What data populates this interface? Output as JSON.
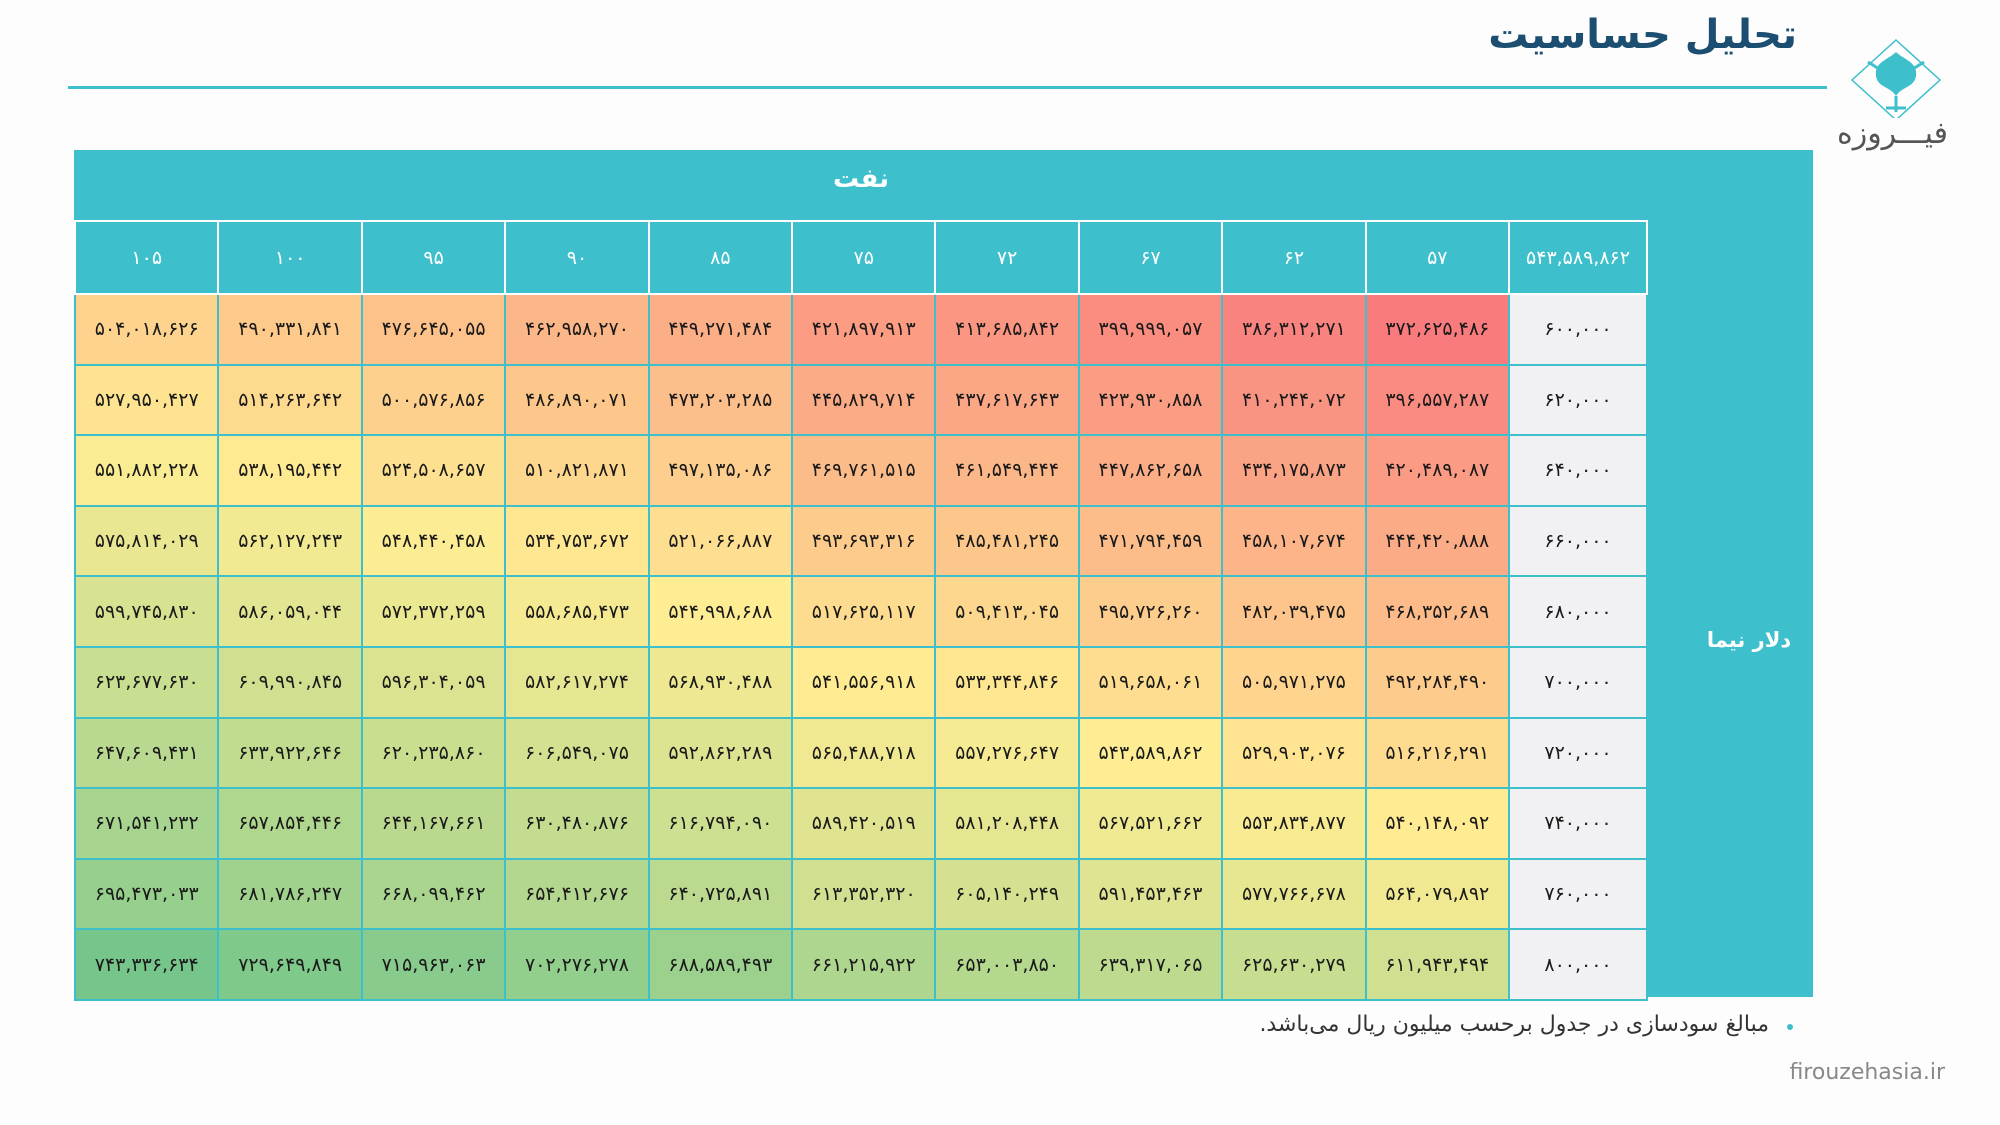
{
  "header": {
    "title": "تحلیل حساسیت",
    "logo_text": "فیـــروزه"
  },
  "colors": {
    "accent": "#3ebfcc",
    "title": "#1b4e70",
    "low": "#f8696b",
    "mid": "#ffeb84",
    "high": "#63be7b"
  },
  "table": {
    "column_group_label": "نفت",
    "row_group_label": "دلار نیما",
    "corner_value": "۵۴۳,۵۸۹,۸۶۲",
    "columns": [
      "۵۷",
      "۶۲",
      "۶۷",
      "۷۲",
      "۷۵",
      "۸۵",
      "۹۰",
      "۹۵",
      "۱۰۰",
      "۱۰۵"
    ],
    "rows": [
      {
        "label": "۶۰۰,۰۰۰",
        "values": [
          "۳۷۲,۶۲۵,۴۸۶",
          "۳۸۶,۳۱۲,۲۷۱",
          "۳۹۹,۹۹۹,۰۵۷",
          "۴۱۳,۶۸۵,۸۴۲",
          "۴۲۱,۸۹۷,۹۱۳",
          "۴۴۹,۲۷۱,۴۸۴",
          "۴۶۲,۹۵۸,۲۷۰",
          "۴۷۶,۶۴۵,۰۵۵",
          "۴۹۰,۳۳۱,۸۴۱",
          "۵۰۴,۰۱۸,۶۲۶"
        ]
      },
      {
        "label": "۶۲۰,۰۰۰",
        "values": [
          "۳۹۶,۵۵۷,۲۸۷",
          "۴۱۰,۲۴۴,۰۷۲",
          "۴۲۳,۹۳۰,۸۵۸",
          "۴۳۷,۶۱۷,۶۴۳",
          "۴۴۵,۸۲۹,۷۱۴",
          "۴۷۳,۲۰۳,۲۸۵",
          "۴۸۶,۸۹۰,۰۷۱",
          "۵۰۰,۵۷۶,۸۵۶",
          "۵۱۴,۲۶۳,۶۴۲",
          "۵۲۷,۹۵۰,۴۲۷"
        ]
      },
      {
        "label": "۶۴۰,۰۰۰",
        "values": [
          "۴۲۰,۴۸۹,۰۸۷",
          "۴۳۴,۱۷۵,۸۷۳",
          "۴۴۷,۸۶۲,۶۵۸",
          "۴۶۱,۵۴۹,۴۴۴",
          "۴۶۹,۷۶۱,۵۱۵",
          "۴۹۷,۱۳۵,۰۸۶",
          "۵۱۰,۸۲۱,۸۷۱",
          "۵۲۴,۵۰۸,۶۵۷",
          "۵۳۸,۱۹۵,۴۴۲",
          "۵۵۱,۸۸۲,۲۲۸"
        ]
      },
      {
        "label": "۶۶۰,۰۰۰",
        "values": [
          "۴۴۴,۴۲۰,۸۸۸",
          "۴۵۸,۱۰۷,۶۷۴",
          "۴۷۱,۷۹۴,۴۵۹",
          "۴۸۵,۴۸۱,۲۴۵",
          "۴۹۳,۶۹۳,۳۱۶",
          "۵۲۱,۰۶۶,۸۸۷",
          "۵۳۴,۷۵۳,۶۷۲",
          "۵۴۸,۴۴۰,۴۵۸",
          "۵۶۲,۱۲۷,۲۴۳",
          "۵۷۵,۸۱۴,۰۲۹"
        ]
      },
      {
        "label": "۶۸۰,۰۰۰",
        "values": [
          "۴۶۸,۳۵۲,۶۸۹",
          "۴۸۲,۰۳۹,۴۷۵",
          "۴۹۵,۷۲۶,۲۶۰",
          "۵۰۹,۴۱۳,۰۴۵",
          "۵۱۷,۶۲۵,۱۱۷",
          "۵۴۴,۹۹۸,۶۸۸",
          "۵۵۸,۶۸۵,۴۷۳",
          "۵۷۲,۳۷۲,۲۵۹",
          "۵۸۶,۰۵۹,۰۴۴",
          "۵۹۹,۷۴۵,۸۳۰"
        ]
      },
      {
        "label": "۷۰۰,۰۰۰",
        "values": [
          "۴۹۲,۲۸۴,۴۹۰",
          "۵۰۵,۹۷۱,۲۷۵",
          "۵۱۹,۶۵۸,۰۶۱",
          "۵۳۳,۳۴۴,۸۴۶",
          "۵۴۱,۵۵۶,۹۱۸",
          "۵۶۸,۹۳۰,۴۸۸",
          "۵۸۲,۶۱۷,۲۷۴",
          "۵۹۶,۳۰۴,۰۵۹",
          "۶۰۹,۹۹۰,۸۴۵",
          "۶۲۳,۶۷۷,۶۳۰"
        ]
      },
      {
        "label": "۷۲۰,۰۰۰",
        "values": [
          "۵۱۶,۲۱۶,۲۹۱",
          "۵۲۹,۹۰۳,۰۷۶",
          "۵۴۳,۵۸۹,۸۶۲",
          "۵۵۷,۲۷۶,۶۴۷",
          "۵۶۵,۴۸۸,۷۱۸",
          "۵۹۲,۸۶۲,۲۸۹",
          "۶۰۶,۵۴۹,۰۷۵",
          "۶۲۰,۲۳۵,۸۶۰",
          "۶۳۳,۹۲۲,۶۴۶",
          "۶۴۷,۶۰۹,۴۳۱"
        ]
      },
      {
        "label": "۷۴۰,۰۰۰",
        "values": [
          "۵۴۰,۱۴۸,۰۹۲",
          "۵۵۳,۸۳۴,۸۷۷",
          "۵۶۷,۵۲۱,۶۶۲",
          "۵۸۱,۲۰۸,۴۴۸",
          "۵۸۹,۴۲۰,۵۱۹",
          "۶۱۶,۷۹۴,۰۹۰",
          "۶۳۰,۴۸۰,۸۷۶",
          "۶۴۴,۱۶۷,۶۶۱",
          "۶۵۷,۸۵۴,۴۴۶",
          "۶۷۱,۵۴۱,۲۳۲"
        ]
      },
      {
        "label": "۷۶۰,۰۰۰",
        "values": [
          "۵۶۴,۰۷۹,۸۹۲",
          "۵۷۷,۷۶۶,۶۷۸",
          "۵۹۱,۴۵۳,۴۶۳",
          "۶۰۵,۱۴۰,۲۴۹",
          "۶۱۳,۳۵۲,۳۲۰",
          "۶۴۰,۷۲۵,۸۹۱",
          "۶۵۴,۴۱۲,۶۷۶",
          "۶۶۸,۰۹۹,۴۶۲",
          "۶۸۱,۷۸۶,۲۴۷",
          "۶۹۵,۴۷۳,۰۳۳"
        ]
      },
      {
        "label": "۸۰۰,۰۰۰",
        "values": [
          "۶۱۱,۹۴۳,۴۹۴",
          "۶۲۵,۶۳۰,۲۷۹",
          "۶۳۹,۳۱۷,۰۶۵",
          "۶۵۳,۰۰۳,۸۵۰",
          "۶۶۱,۲۱۵,۹۲۲",
          "۶۸۸,۵۸۹,۴۹۳",
          "۷۰۲,۲۷۶,۲۷۸",
          "۷۱۵,۹۶۳,۰۶۳",
          "۷۲۹,۶۴۹,۸۴۹",
          "۷۴۳,۳۳۶,۶۳۴"
        ]
      }
    ]
  },
  "footer": {
    "note": "مبالغ سودسازی در جدول برحسب میلیون ریال می‌باشد.",
    "website": "firouzehasia.ir"
  }
}
